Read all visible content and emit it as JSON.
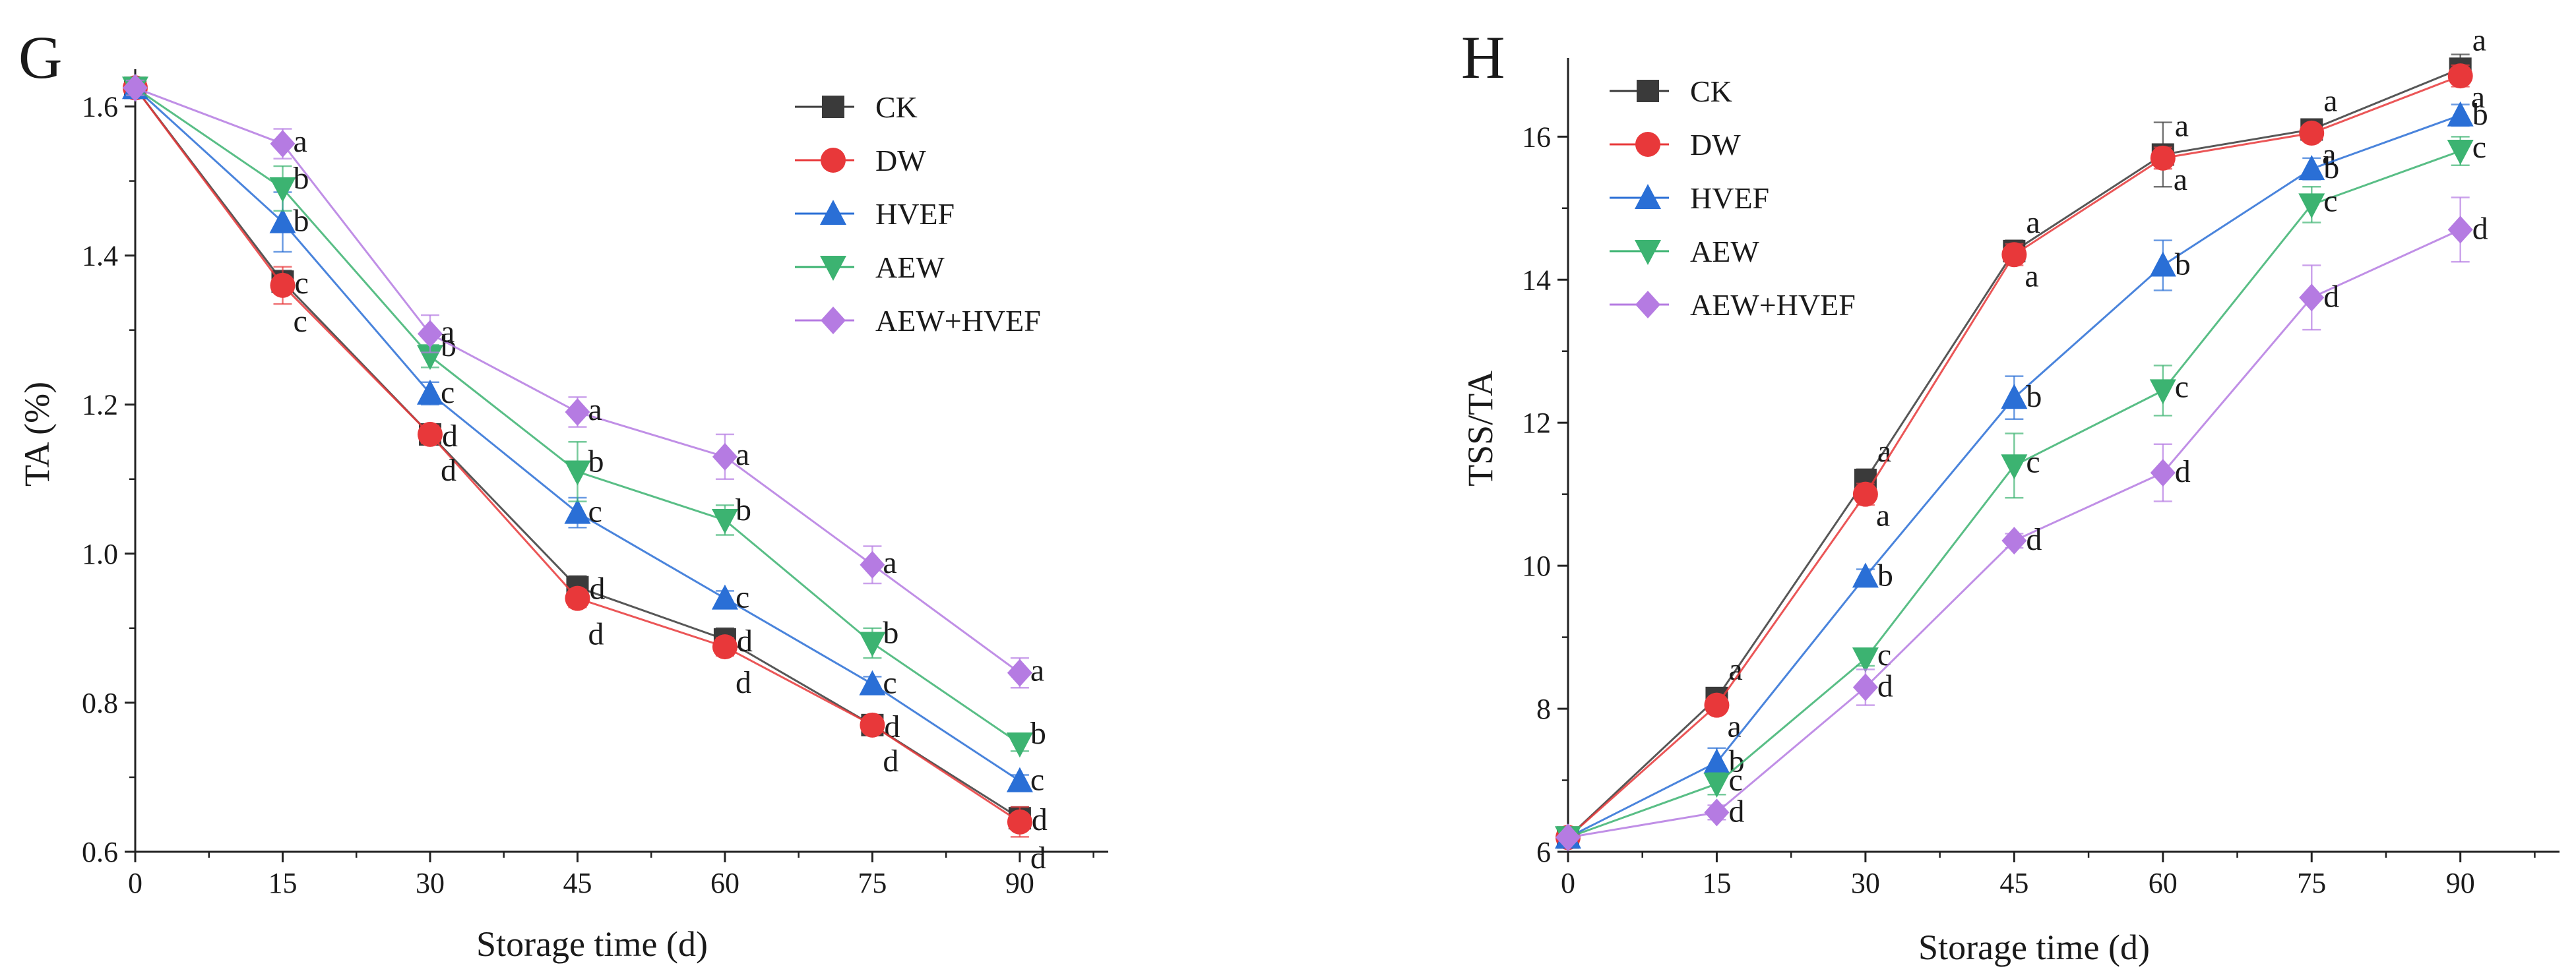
{
  "chart_data": [
    {
      "type": "line",
      "panel": "G",
      "xlabel": "Storage time (d)",
      "ylabel": "TA (%)",
      "x": [
        0,
        15,
        30,
        45,
        60,
        75,
        90
      ],
      "xticks": [
        "0",
        "15",
        "30",
        "45",
        "60",
        "75",
        "90"
      ],
      "yticks": [
        "0.6",
        "0.8",
        "1.0",
        "1.2",
        "1.4",
        "1.6"
      ],
      "xlim": [
        0,
        99
      ],
      "ylim": [
        0.6,
        1.65
      ],
      "legend_position": "top-right",
      "series": [
        {
          "name": "CK",
          "color": "#3a3a3a",
          "marker": "square",
          "values": [
            1.625,
            1.365,
            1.16,
            0.955,
            0.885,
            0.77,
            0.645
          ],
          "errors": [
            0.01,
            0.015,
            0.01,
            0.015,
            0.015,
            0.008,
            0.015
          ],
          "letters": [
            "",
            "c",
            "d",
            "d",
            "d",
            "d",
            "d"
          ]
        },
        {
          "name": "DW",
          "color": "#e8383a",
          "marker": "circle",
          "values": [
            1.625,
            1.36,
            1.16,
            0.94,
            0.875,
            0.77,
            0.64
          ],
          "errors": [
            0.01,
            0.025,
            0.012,
            0.012,
            0.012,
            0.008,
            0.02
          ],
          "letters": [
            "",
            "c",
            "d",
            "d",
            "d",
            "d",
            "d"
          ]
        },
        {
          "name": "HVEF",
          "color": "#2a6fd6",
          "marker": "triangle-up",
          "values": [
            1.625,
            1.445,
            1.215,
            1.055,
            0.94,
            0.825,
            0.695
          ],
          "errors": [
            0.01,
            0.04,
            0.015,
            0.02,
            0.01,
            0.01,
            0.008
          ],
          "letters": [
            "",
            "b",
            "c",
            "c",
            "c",
            "c",
            "c"
          ]
        },
        {
          "name": "AEW",
          "color": "#3cb371",
          "marker": "triangle-down",
          "values": [
            1.625,
            1.49,
            1.265,
            1.11,
            1.045,
            0.88,
            0.745
          ],
          "errors": [
            0.01,
            0.03,
            0.015,
            0.04,
            0.02,
            0.02,
            0.01
          ],
          "letters": [
            "",
            "b",
            "b",
            "b",
            "b",
            "b",
            "b"
          ]
        },
        {
          "name": "AEW+HVEF",
          "color": "#b57be2",
          "marker": "diamond",
          "values": [
            1.625,
            1.55,
            1.295,
            1.19,
            1.13,
            0.985,
            0.84
          ],
          "errors": [
            0.01,
            0.02,
            0.025,
            0.02,
            0.03,
            0.025,
            0.02
          ],
          "letters": [
            "",
            "a",
            "a",
            "a",
            "a",
            "a",
            "a"
          ]
        }
      ]
    },
    {
      "type": "line",
      "panel": "H",
      "xlabel": "Storage time (d)",
      "ylabel": "TSS/TA",
      "x": [
        0,
        15,
        30,
        45,
        60,
        75,
        90
      ],
      "xticks": [
        "0",
        "15",
        "30",
        "45",
        "60",
        "75",
        "90"
      ],
      "yticks": [
        "6",
        "8",
        "10",
        "12",
        "14",
        "16"
      ],
      "xlim": [
        0,
        100
      ],
      "ylim": [
        6,
        17.1
      ],
      "legend_position": "top-left",
      "series": [
        {
          "name": "CK",
          "color": "#3a3a3a",
          "marker": "square",
          "values": [
            6.2,
            8.15,
            11.2,
            14.4,
            15.75,
            16.1,
            16.95
          ],
          "errors": [
            0.05,
            0.1,
            0.15,
            0.15,
            0.45,
            0.1,
            0.2
          ],
          "letters": [
            "",
            "a",
            "a",
            "a",
            "a",
            "a",
            "a"
          ]
        },
        {
          "name": "DW",
          "color": "#e8383a",
          "marker": "circle",
          "values": [
            6.2,
            8.05,
            11.0,
            14.35,
            15.7,
            16.05,
            16.85
          ],
          "errors": [
            0.05,
            0.1,
            0.15,
            0.15,
            0.15,
            0.1,
            0.15
          ],
          "letters": [
            "",
            "a",
            "a",
            "a",
            "a",
            "a",
            "a"
          ]
        },
        {
          "name": "HVEF",
          "color": "#2a6fd6",
          "marker": "triangle-up",
          "values": [
            6.2,
            7.25,
            9.85,
            12.35,
            14.2,
            15.55,
            16.3
          ],
          "errors": [
            0.05,
            0.2,
            0.1,
            0.3,
            0.35,
            0.15,
            0.15
          ],
          "letters": [
            "",
            "b",
            "b",
            "b",
            "b",
            "b",
            "b"
          ]
        },
        {
          "name": "AEW",
          "color": "#3cb371",
          "marker": "triangle-down",
          "values": [
            6.2,
            6.95,
            8.7,
            11.4,
            12.45,
            15.05,
            15.8
          ],
          "errors": [
            0.05,
            0.15,
            0.1,
            0.45,
            0.35,
            0.25,
            0.2
          ],
          "letters": [
            "",
            "c",
            "c",
            "c",
            "c",
            "c",
            "c"
          ]
        },
        {
          "name": "AEW+HVEF",
          "color": "#b57be2",
          "marker": "diamond",
          "values": [
            6.2,
            6.55,
            8.3,
            10.35,
            11.3,
            13.75,
            14.7
          ],
          "errors": [
            0.05,
            0.1,
            0.25,
            0.1,
            0.4,
            0.45,
            0.45
          ],
          "letters": [
            "",
            "d",
            "d",
            "d",
            "d",
            "d",
            "d"
          ]
        }
      ]
    }
  ]
}
